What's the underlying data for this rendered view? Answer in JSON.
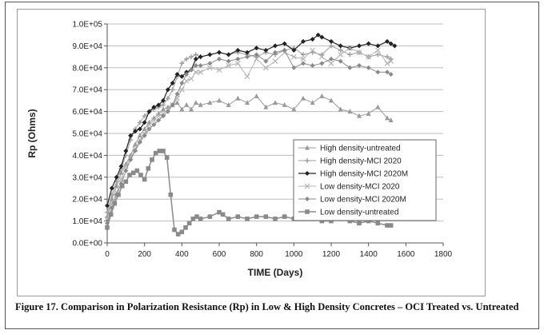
{
  "caption": "Figure 17. Comparison in Polarization Resistance (Rp) in Low & High Density Concretes – OCI Treated vs. Untreated",
  "colors": {
    "gridline": "#bdbdbd",
    "axis": "#555555"
  },
  "chart_data": {
    "type": "line",
    "title": "",
    "xlabel": "TIME (Days)",
    "ylabel": "Rp (Ohms)",
    "xlim": [
      0,
      1800
    ],
    "ylim": [
      0,
      100000
    ],
    "xticks": [
      0,
      200,
      400,
      600,
      800,
      1000,
      1200,
      1400,
      1600,
      1800
    ],
    "yticks": [
      0,
      10000,
      20000,
      30000,
      40000,
      50000,
      60000,
      70000,
      80000,
      90000,
      100000
    ],
    "xtick_labels": [
      "0",
      "200",
      "400",
      "600",
      "800",
      "1000",
      "1200",
      "1400",
      "1600",
      "1800"
    ],
    "ytick_labels": [
      "0.0E+00",
      "1.0E+04",
      "2.0E+04",
      "3.0E+04",
      "4.0E+04",
      "5.0E+04",
      "6.0E+04",
      "7.0E+04",
      "8.0E+04",
      "9.0E+04",
      "1.0E+05"
    ],
    "grid": "horizontal",
    "legend_position": "inside-right",
    "series": [
      {
        "name": "High density-untreated",
        "color": "#999999",
        "marker": "triangle",
        "line_width": 1,
        "x": [
          0,
          25,
          50,
          75,
          100,
          125,
          150,
          175,
          200,
          225,
          250,
          275,
          300,
          325,
          350,
          375,
          400,
          425,
          450,
          475,
          500,
          550,
          600,
          650,
          700,
          750,
          800,
          850,
          900,
          950,
          1000,
          1050,
          1100,
          1150,
          1200,
          1250,
          1300,
          1350,
          1400,
          1450,
          1500,
          1520
        ],
        "y": [
          12000,
          20000,
          26000,
          32000,
          36000,
          40000,
          45000,
          49000,
          52000,
          55000,
          57000,
          59000,
          61000,
          62000,
          63000,
          64000,
          61000,
          63000,
          61000,
          64000,
          63000,
          64000,
          65000,
          63000,
          66000,
          64000,
          67000,
          62000,
          64000,
          63000,
          61000,
          66000,
          64000,
          67000,
          65000,
          61000,
          60000,
          58000,
          59000,
          62000,
          57000,
          56000
        ]
      },
      {
        "name": "High density-MCI 2020",
        "color": "#9e9e9e",
        "marker": "plus",
        "line_width": 1,
        "x": [
          0,
          25,
          50,
          75,
          100,
          125,
          150,
          175,
          200,
          225,
          250,
          275,
          300,
          325,
          350,
          375,
          400,
          425,
          450,
          475,
          500,
          550,
          600,
          650,
          700,
          750,
          800,
          850,
          900,
          950,
          1000,
          1050,
          1100,
          1150,
          1200,
          1250,
          1300,
          1350,
          1400,
          1450,
          1500,
          1520
        ],
        "y": [
          14000,
          22000,
          28000,
          34000,
          40000,
          47000,
          52000,
          55000,
          58000,
          60000,
          61000,
          62000,
          63000,
          66000,
          70000,
          76000,
          82000,
          84000,
          85000,
          86000,
          85000,
          86000,
          87000,
          86000,
          87000,
          86000,
          85000,
          87000,
          86000,
          88000,
          89000,
          86000,
          87000,
          86000,
          90000,
          88000,
          86000,
          87000,
          85000,
          86000,
          85000,
          84000
        ]
      },
      {
        "name": "High density-MCI 2020M",
        "color": "#222222",
        "marker": "diamond",
        "line_width": 1.2,
        "x": [
          0,
          25,
          50,
          75,
          100,
          125,
          150,
          175,
          200,
          225,
          250,
          275,
          300,
          325,
          350,
          375,
          400,
          425,
          450,
          475,
          500,
          550,
          600,
          650,
          700,
          750,
          800,
          850,
          900,
          950,
          1000,
          1050,
          1100,
          1130,
          1150,
          1200,
          1250,
          1300,
          1350,
          1400,
          1450,
          1500,
          1520,
          1540
        ],
        "y": [
          17000,
          25000,
          30000,
          35000,
          42000,
          49000,
          51000,
          52000,
          55000,
          60000,
          62000,
          63000,
          65000,
          70000,
          73000,
          77000,
          76000,
          78000,
          79000,
          84000,
          85000,
          86000,
          87000,
          86000,
          88000,
          87000,
          89000,
          88000,
          90000,
          91000,
          88000,
          92000,
          93000,
          95000,
          94000,
          92000,
          90000,
          89000,
          90000,
          91000,
          90000,
          92000,
          91000,
          90000
        ]
      },
      {
        "name": "Low density-MCI 2020",
        "color": "#b3b3b3",
        "marker": "x",
        "line_width": 1,
        "x": [
          0,
          25,
          50,
          75,
          100,
          125,
          150,
          175,
          200,
          225,
          250,
          275,
          300,
          325,
          350,
          375,
          400,
          425,
          450,
          475,
          500,
          550,
          600,
          650,
          700,
          750,
          800,
          850,
          900,
          950,
          1000,
          1050,
          1100,
          1150,
          1200,
          1250,
          1300,
          1350,
          1400,
          1450,
          1500,
          1520
        ],
        "y": [
          11000,
          18000,
          23000,
          29000,
          35000,
          39000,
          43000,
          47000,
          50000,
          54000,
          56000,
          58000,
          59000,
          61000,
          63000,
          66000,
          70000,
          74000,
          75000,
          78000,
          78000,
          80000,
          79000,
          81000,
          82000,
          76000,
          84000,
          80000,
          83000,
          87000,
          85000,
          84000,
          88000,
          85000,
          82000,
          86000,
          89000,
          87000,
          85000,
          88000,
          82000,
          83000
        ]
      },
      {
        "name": "Low density-MCI 2020M",
        "color": "#8a8a8a",
        "marker": "diamond",
        "line_width": 1,
        "x": [
          0,
          25,
          50,
          75,
          100,
          125,
          150,
          175,
          200,
          225,
          250,
          275,
          300,
          325,
          350,
          375,
          400,
          425,
          450,
          475,
          500,
          550,
          600,
          650,
          700,
          750,
          800,
          850,
          900,
          950,
          1000,
          1050,
          1100,
          1150,
          1200,
          1250,
          1300,
          1350,
          1400,
          1450,
          1500,
          1520
        ],
        "y": [
          9000,
          16000,
          22000,
          27000,
          33000,
          38000,
          42000,
          46000,
          49000,
          52000,
          54000,
          56000,
          58000,
          60000,
          63000,
          68000,
          73000,
          77000,
          79000,
          81000,
          81000,
          82000,
          84000,
          83000,
          84000,
          85000,
          86000,
          83000,
          87000,
          88000,
          80000,
          82000,
          81000,
          82000,
          84000,
          83000,
          80000,
          81000,
          80000,
          78000,
          78000,
          77000
        ]
      },
      {
        "name": "Low density-untreated",
        "color": "#8a8a8a",
        "marker": "square",
        "line_width": 1.5,
        "x": [
          0,
          20,
          40,
          60,
          80,
          100,
          120,
          140,
          160,
          180,
          200,
          220,
          240,
          260,
          280,
          300,
          320,
          340,
          360,
          380,
          400,
          420,
          440,
          460,
          480,
          500,
          550,
          600,
          620,
          650,
          700,
          750,
          800,
          850,
          900,
          950,
          1000,
          1050,
          1100,
          1150,
          1200,
          1250,
          1300,
          1350,
          1400,
          1450,
          1500,
          1520
        ],
        "y": [
          7000,
          13000,
          18000,
          22000,
          26000,
          28000,
          31000,
          32000,
          33000,
          31000,
          29000,
          34000,
          38000,
          41000,
          42000,
          42000,
          39000,
          22000,
          6000,
          4000,
          5000,
          7000,
          9000,
          11000,
          12000,
          11000,
          12000,
          14000,
          13000,
          11000,
          12000,
          11000,
          12000,
          12000,
          11000,
          12000,
          11000,
          11000,
          11000,
          10000,
          10000,
          11000,
          10000,
          9000,
          10000,
          9000,
          8000,
          8000
        ]
      }
    ]
  }
}
